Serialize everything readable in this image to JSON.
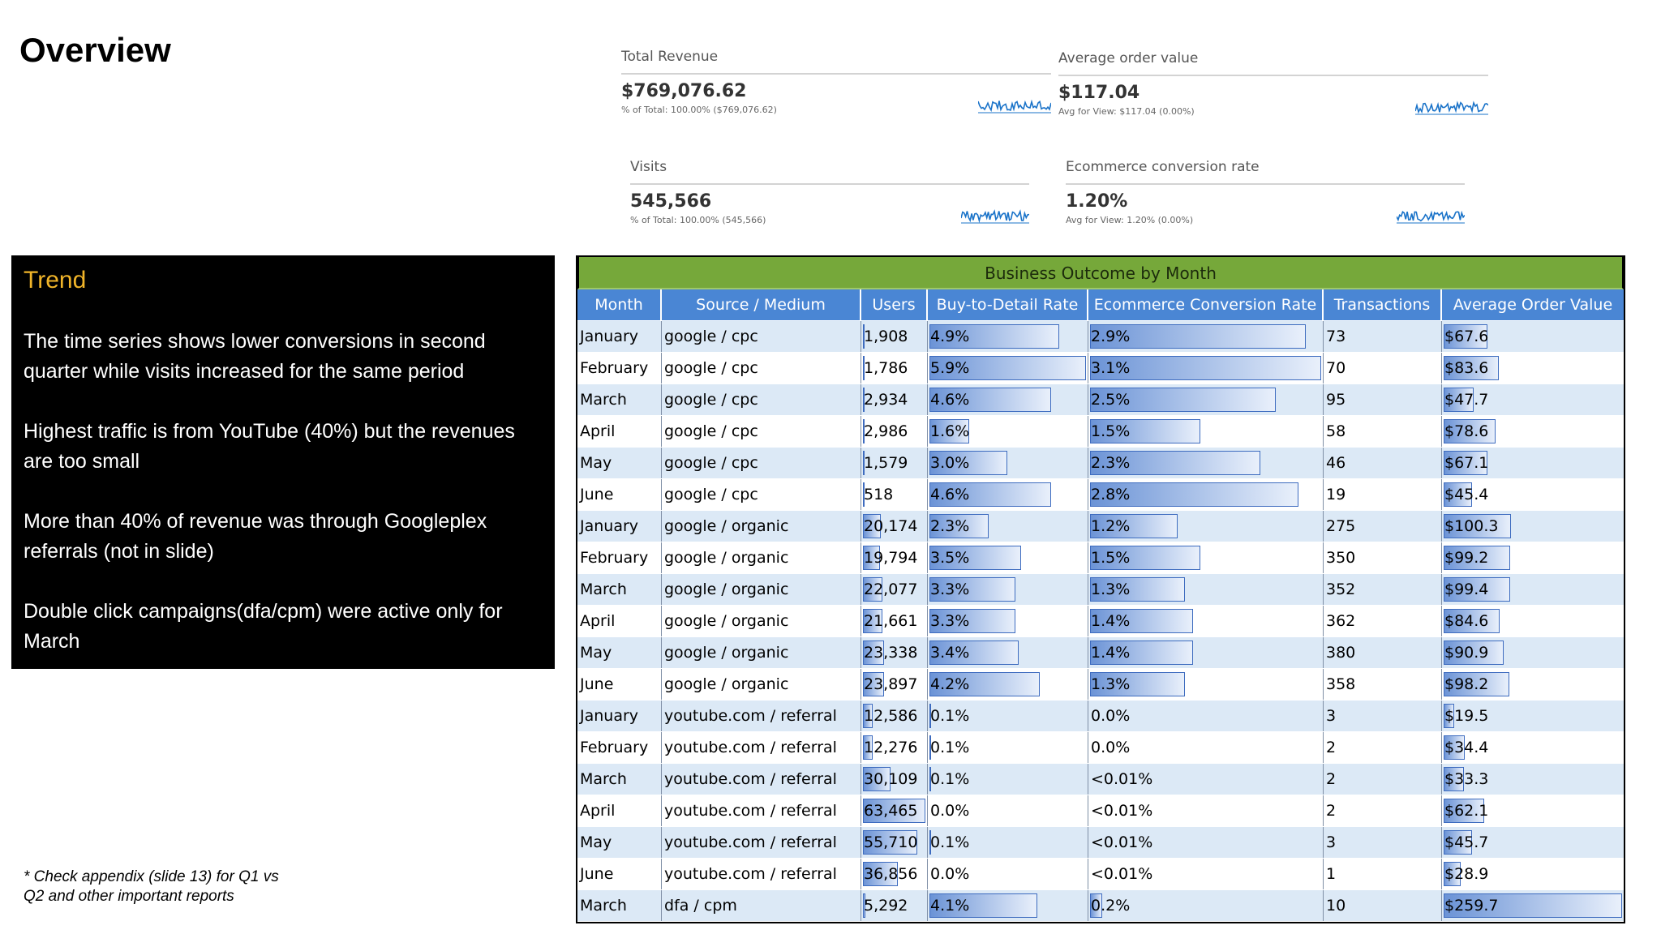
{
  "page_title": "Overview",
  "kpis": [
    {
      "label": "Total Revenue",
      "value": "$769,076.62",
      "sub": "% of Total: 100.00% ($769,076.62)"
    },
    {
      "label": "Average order value",
      "value": "$117.04",
      "sub": "Avg for View: $117.04 (0.00%)"
    },
    {
      "label": "Visits",
      "value": "545,566",
      "sub": "% of Total: 100.00% (545,566)"
    },
    {
      "label": "Ecommerce conversion rate",
      "value": "1.20%",
      "sub": "Avg for View: 1.20% (0.00%)"
    }
  ],
  "trend": {
    "heading": "Trend",
    "points": [
      "The time series shows lower conversions in second quarter while visits increased for the same period",
      "Highest traffic is from YouTube (40%) but the revenues are too small",
      "More than 40% of revenue was through Googleplex referrals (not in slide)",
      "Double click campaigns(dfa/cpm) were active only for March"
    ]
  },
  "footnote": "* Check appendix (slide 13) for Q1 vs Q2 and other important reports",
  "table": {
    "title": "Business Outcome by Month",
    "columns": [
      "Month",
      "Source / Medium",
      "Users",
      "Buy-to-Detail Rate",
      "Ecommerce Conversion Rate",
      "Transactions",
      "Average Order Value"
    ],
    "rows": [
      {
        "month": "January",
        "source": "google / cpc",
        "users": "1,908",
        "users_n": 1908,
        "btd": "4.9%",
        "btd_n": 4.9,
        "ecr": "2.9%",
        "ecr_n": 2.9,
        "tx": "73",
        "aov": "$67.6",
        "aov_n": 67.6
      },
      {
        "month": "February",
        "source": "google / cpc",
        "users": "1,786",
        "users_n": 1786,
        "btd": "5.9%",
        "btd_n": 5.9,
        "ecr": "3.1%",
        "ecr_n": 3.1,
        "tx": "70",
        "aov": "$83.6",
        "aov_n": 83.6
      },
      {
        "month": "March",
        "source": "google / cpc",
        "users": "2,934",
        "users_n": 2934,
        "btd": "4.6%",
        "btd_n": 4.6,
        "ecr": "2.5%",
        "ecr_n": 2.5,
        "tx": "95",
        "aov": "$47.7",
        "aov_n": 47.7
      },
      {
        "month": "April",
        "source": "google / cpc",
        "users": "2,986",
        "users_n": 2986,
        "btd": "1.6%",
        "btd_n": 1.6,
        "ecr": "1.5%",
        "ecr_n": 1.5,
        "tx": "58",
        "aov": "$78.6",
        "aov_n": 78.6
      },
      {
        "month": "May",
        "source": "google / cpc",
        "users": "1,579",
        "users_n": 1579,
        "btd": "3.0%",
        "btd_n": 3.0,
        "ecr": "2.3%",
        "ecr_n": 2.3,
        "tx": "46",
        "aov": "$67.1",
        "aov_n": 67.1
      },
      {
        "month": "June",
        "source": "google / cpc",
        "users": "518",
        "users_n": 518,
        "btd": "4.6%",
        "btd_n": 4.6,
        "ecr": "2.8%",
        "ecr_n": 2.8,
        "tx": "19",
        "aov": "$45.4",
        "aov_n": 45.4
      },
      {
        "month": "January",
        "source": "google / organic",
        "users": "20,174",
        "users_n": 20174,
        "btd": "2.3%",
        "btd_n": 2.3,
        "ecr": "1.2%",
        "ecr_n": 1.2,
        "tx": "275",
        "aov": "$100.3",
        "aov_n": 100.3
      },
      {
        "month": "February",
        "source": "google / organic",
        "users": "19,794",
        "users_n": 19794,
        "btd": "3.5%",
        "btd_n": 3.5,
        "ecr": "1.5%",
        "ecr_n": 1.5,
        "tx": "350",
        "aov": "$99.2",
        "aov_n": 99.2
      },
      {
        "month": "March",
        "source": "google / organic",
        "users": "22,077",
        "users_n": 22077,
        "btd": "3.3%",
        "btd_n": 3.3,
        "ecr": "1.3%",
        "ecr_n": 1.3,
        "tx": "352",
        "aov": "$99.4",
        "aov_n": 99.4
      },
      {
        "month": "April",
        "source": "google / organic",
        "users": "21,661",
        "users_n": 21661,
        "btd": "3.3%",
        "btd_n": 3.3,
        "ecr": "1.4%",
        "ecr_n": 1.4,
        "tx": "362",
        "aov": "$84.6",
        "aov_n": 84.6
      },
      {
        "month": "May",
        "source": "google / organic",
        "users": "23,338",
        "users_n": 23338,
        "btd": "3.4%",
        "btd_n": 3.4,
        "ecr": "1.4%",
        "ecr_n": 1.4,
        "tx": "380",
        "aov": "$90.9",
        "aov_n": 90.9
      },
      {
        "month": "June",
        "source": "google / organic",
        "users": "23,897",
        "users_n": 23897,
        "btd": "4.2%",
        "btd_n": 4.2,
        "ecr": "1.3%",
        "ecr_n": 1.3,
        "tx": "358",
        "aov": "$98.2",
        "aov_n": 98.2
      },
      {
        "month": "January",
        "source": "youtube.com / referral",
        "users": "12,586",
        "users_n": 12586,
        "btd": "0.1%",
        "btd_n": 0.1,
        "ecr": "0.0%",
        "ecr_n": 0,
        "tx": "3",
        "aov": "$19.5",
        "aov_n": 19.5
      },
      {
        "month": "February",
        "source": "youtube.com / referral",
        "users": "12,276",
        "users_n": 12276,
        "btd": "0.1%",
        "btd_n": 0.1,
        "ecr": "0.0%",
        "ecr_n": 0,
        "tx": "2",
        "aov": "$34.4",
        "aov_n": 34.4
      },
      {
        "month": "March",
        "source": "youtube.com / referral",
        "users": "30,109",
        "users_n": 30109,
        "btd": "0.1%",
        "btd_n": 0.1,
        "ecr": "<0.01%",
        "ecr_n": 0,
        "tx": "2",
        "aov": "$33.3",
        "aov_n": 33.3
      },
      {
        "month": "April",
        "source": "youtube.com / referral",
        "users": "63,465",
        "users_n": 63465,
        "btd": "0.0%",
        "btd_n": 0,
        "ecr": "<0.01%",
        "ecr_n": 0,
        "tx": "2",
        "aov": "$62.1",
        "aov_n": 62.1
      },
      {
        "month": "May",
        "source": "youtube.com / referral",
        "users": "55,710",
        "users_n": 55710,
        "btd": "0.1%",
        "btd_n": 0.1,
        "ecr": "<0.01%",
        "ecr_n": 0,
        "tx": "3",
        "aov": "$45.7",
        "aov_n": 45.7
      },
      {
        "month": "June",
        "source": "youtube.com / referral",
        "users": "36,856",
        "users_n": 36856,
        "btd": "0.0%",
        "btd_n": 0,
        "ecr": "<0.01%",
        "ecr_n": 0,
        "tx": "1",
        "aov": "$28.9",
        "aov_n": 28.9
      },
      {
        "month": "March",
        "source": "dfa / cpm",
        "users": "5,292",
        "users_n": 5292,
        "btd": "4.1%",
        "btd_n": 4.1,
        "ecr": "0.2%",
        "ecr_n": 0.2,
        "tx": "10",
        "aov": "$259.7",
        "aov_n": 259.7
      }
    ]
  },
  "colors": {
    "trend_heading": "#f0b429",
    "table_title_bg": "#76a83a",
    "header_bg": "#4a86d4",
    "row_alt": "#dce9f6",
    "databar": "#6b93d6",
    "sparkline": "#1a73c9"
  }
}
